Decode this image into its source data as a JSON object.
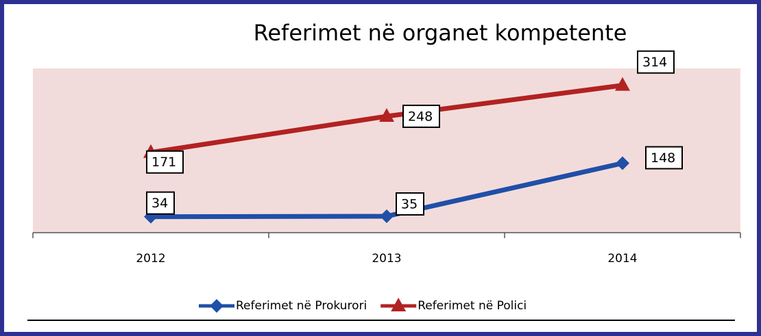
{
  "chart_data": {
    "type": "line",
    "title": "Referimet në organet kompetente",
    "categories": [
      "2012",
      "2013",
      "2014"
    ],
    "series": [
      {
        "name": "Referimet në Prokurori",
        "color": "#1f4fa8",
        "marker": "diamond",
        "values": [
          34,
          35,
          148
        ]
      },
      {
        "name": "Referimet në Polici",
        "color": "#b22222",
        "marker": "triangle",
        "values": [
          171,
          248,
          314
        ]
      }
    ],
    "ylim": [
      0,
      350
    ],
    "plot_background": "#f2dcdb",
    "legend": "bottom"
  }
}
